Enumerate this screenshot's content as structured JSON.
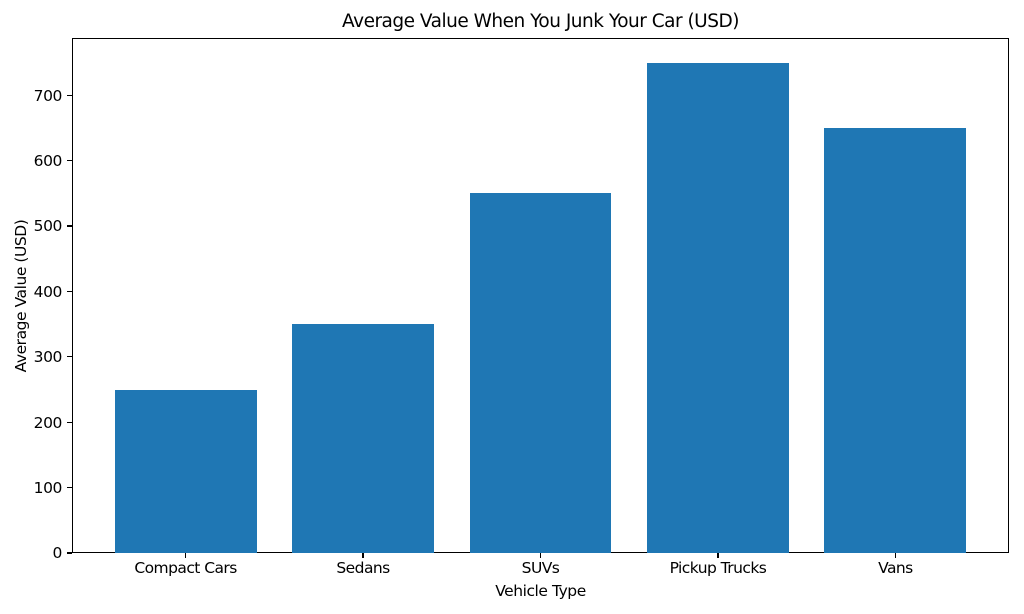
{
  "chart_data": {
    "type": "bar",
    "title": "Average Value When You Junk Your Car (USD)",
    "categories": [
      "Compact Cars",
      "Sedans",
      "SUVs",
      "Pickup Trucks",
      "Vans"
    ],
    "values": [
      250,
      350,
      550,
      750,
      650
    ],
    "xlabel": "Vehicle Type",
    "ylabel": "Average Value (USD)",
    "ylim": [
      0,
      787.5
    ],
    "yticks": [
      0,
      100,
      200,
      300,
      400,
      500,
      600,
      700
    ],
    "bar_color": "#1f77b4",
    "grid": false,
    "legend": false
  }
}
